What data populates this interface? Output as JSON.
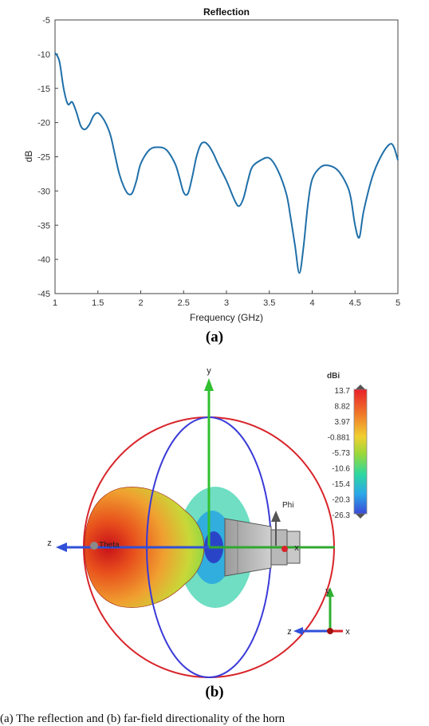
{
  "chart_data": {
    "type": "line",
    "title": "Reflection",
    "xlabel": "Frequency (GHz)",
    "ylabel": "dB",
    "xlim": [
      1,
      5
    ],
    "ylim": [
      -45,
      -5
    ],
    "x_ticks": [
      "1",
      "1.5",
      "2",
      "2.5",
      "3",
      "3.5",
      "4",
      "4.5",
      "5"
    ],
    "y_ticks": [
      "-5",
      "-10",
      "-15",
      "-20",
      "-25",
      "-30",
      "-35",
      "-40",
      "-45"
    ],
    "grid": false,
    "series": [
      {
        "color": "#1f6fa8",
        "x": [
          1.0,
          1.05,
          1.1,
          1.15,
          1.2,
          1.25,
          1.3,
          1.35,
          1.4,
          1.45,
          1.5,
          1.55,
          1.6,
          1.65,
          1.7,
          1.75,
          1.8,
          1.85,
          1.9,
          1.95,
          2.0,
          2.1,
          2.2,
          2.3,
          2.4,
          2.45,
          2.5,
          2.55,
          2.6,
          2.65,
          2.7,
          2.75,
          2.8,
          2.85,
          2.9,
          3.0,
          3.1,
          3.15,
          3.2,
          3.25,
          3.3,
          3.4,
          3.5,
          3.6,
          3.7,
          3.75,
          3.8,
          3.85,
          3.9,
          3.95,
          4.0,
          4.1,
          4.2,
          4.3,
          4.4,
          4.45,
          4.5,
          4.55,
          4.6,
          4.7,
          4.8,
          4.9,
          4.95,
          5.0
        ],
        "y": [
          -9.8,
          -11.0,
          -15.0,
          -17.3,
          -17.0,
          -18.5,
          -20.5,
          -21.0,
          -20.3,
          -19.0,
          -18.6,
          -19.2,
          -20.3,
          -22.0,
          -24.8,
          -27.5,
          -29.3,
          -30.4,
          -30.3,
          -28.5,
          -26.0,
          -24.0,
          -23.6,
          -24.0,
          -26.0,
          -28.0,
          -30.2,
          -30.4,
          -28.0,
          -25.0,
          -23.2,
          -22.9,
          -23.5,
          -24.6,
          -26.0,
          -28.5,
          -31.5,
          -32.2,
          -31.0,
          -28.5,
          -26.5,
          -25.5,
          -25.2,
          -27.0,
          -30.5,
          -34.0,
          -38.0,
          -42.0,
          -38.0,
          -32.0,
          -28.3,
          -26.5,
          -26.3,
          -27.0,
          -29.0,
          -31.0,
          -35.0,
          -36.8,
          -33.0,
          -28.0,
          -25.0,
          -23.2,
          -23.5,
          -25.5
        ]
      }
    ]
  },
  "panel_a_label": "(a)",
  "panel_b_label": "(b)",
  "pattern_plot": {
    "colorscale_title": "dBi",
    "colorscale_values": [
      "13.7",
      "8.82",
      "3.97",
      "-0.881",
      "-5.73",
      "-10.6",
      "-15.4",
      "-20.3",
      "-26.3"
    ],
    "axis_y": "y",
    "axis_z": "z",
    "axis_x": "x",
    "theta_label": "Theta",
    "phi_label": "Phi",
    "triad_y": "y",
    "triad_z": "z",
    "triad_x": "x"
  },
  "caption": "(a) The reflection and (b) far-field directionality of the horn"
}
